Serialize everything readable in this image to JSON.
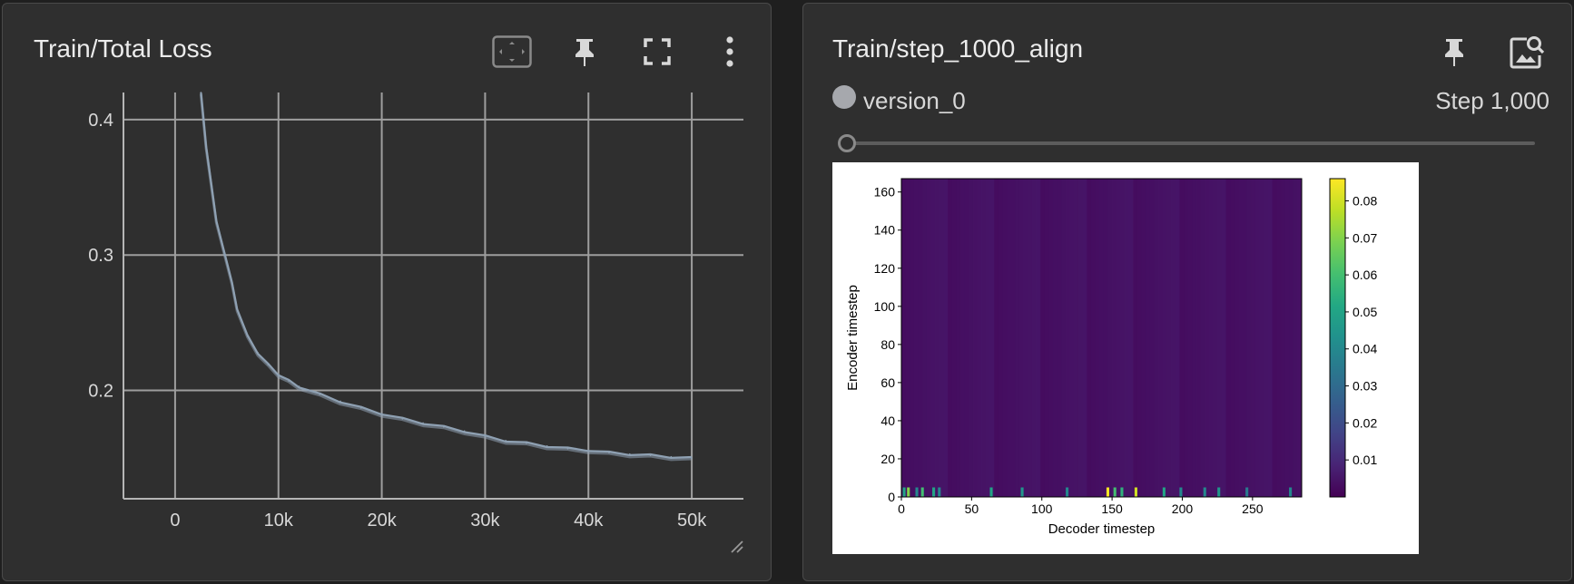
{
  "left_card": {
    "title": "Train/Total Loss",
    "icons": [
      "fit-domain-icon",
      "pin-icon",
      "fullscreen-icon",
      "more-vert-icon"
    ]
  },
  "right_card": {
    "title": "Train/step_1000_align",
    "run_name": "version_0",
    "run_color": "#a6a8ad",
    "step_label": "Step 1,000",
    "slider_value": 0,
    "icons": [
      "pin-icon",
      "image-search-icon"
    ]
  },
  "chart_data": [
    {
      "type": "line",
      "title": "",
      "x_ticks": [
        "0",
        "10k",
        "20k",
        "30k",
        "40k",
        "50k"
      ],
      "y_ticks": [
        "0.2",
        "0.3",
        "0.4"
      ],
      "xlim": [
        -5000,
        55000
      ],
      "ylim": [
        0.12,
        0.42
      ],
      "grid": true,
      "series": [
        {
          "color": "#8fa1b3",
          "x": [
            2500,
            3000,
            4000,
            5000,
            5500,
            6000,
            7000,
            8000,
            9000,
            10000,
            11000,
            12000,
            14000,
            16000,
            18000,
            20000,
            22000,
            24000,
            26000,
            28000,
            30000,
            32000,
            34000,
            36000,
            38000,
            40000,
            42000,
            44000,
            46000,
            48000,
            50000
          ],
          "y": [
            0.42,
            0.38,
            0.325,
            0.295,
            0.28,
            0.26,
            0.24,
            0.228,
            0.219,
            0.212,
            0.207,
            0.203,
            0.197,
            0.192,
            0.187,
            0.183,
            0.179,
            0.176,
            0.173,
            0.17,
            0.166,
            0.163,
            0.161,
            0.159,
            0.157,
            0.156,
            0.154,
            0.153,
            0.152,
            0.151,
            0.15
          ]
        }
      ]
    },
    {
      "type": "heatmap",
      "xlabel": "Decoder timestep",
      "ylabel": "Encoder timestep",
      "x_ticks": [
        0,
        50,
        100,
        150,
        200,
        250
      ],
      "y_ticks": [
        0,
        20,
        40,
        60,
        80,
        100,
        120,
        140,
        160
      ],
      "xlim": [
        0,
        285
      ],
      "ylim": [
        0,
        167
      ],
      "colormap": "viridis",
      "colorbar_ticks": [
        0.01,
        0.02,
        0.03,
        0.04,
        0.05,
        0.06,
        0.07,
        0.08
      ],
      "colorbar_range": [
        0,
        0.086
      ],
      "background_value": 0.003,
      "high_cells_row0": [
        {
          "x": 1,
          "value": 0.05
        },
        {
          "x": 4,
          "value": 0.07
        },
        {
          "x": 10,
          "value": 0.04
        },
        {
          "x": 14,
          "value": 0.06
        },
        {
          "x": 22,
          "value": 0.05
        },
        {
          "x": 26,
          "value": 0.04
        },
        {
          "x": 63,
          "value": 0.05
        },
        {
          "x": 85,
          "value": 0.045
        },
        {
          "x": 117,
          "value": 0.04
        },
        {
          "x": 146,
          "value": 0.085
        },
        {
          "x": 151,
          "value": 0.06
        },
        {
          "x": 156,
          "value": 0.055
        },
        {
          "x": 166,
          "value": 0.08
        },
        {
          "x": 186,
          "value": 0.05
        },
        {
          "x": 198,
          "value": 0.04
        },
        {
          "x": 215,
          "value": 0.04
        },
        {
          "x": 225,
          "value": 0.045
        },
        {
          "x": 245,
          "value": 0.035
        },
        {
          "x": 276,
          "value": 0.04
        }
      ]
    }
  ]
}
